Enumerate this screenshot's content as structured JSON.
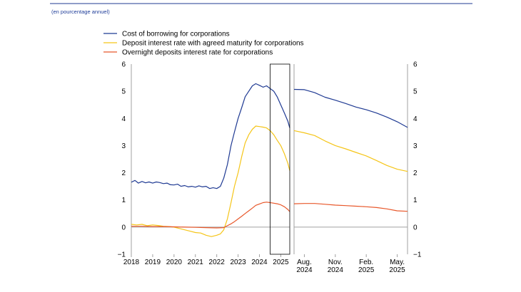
{
  "header": {
    "subtitle": "(en pourcentage annuel)"
  },
  "colors": {
    "borrowing": "#1f3a93",
    "deposit": "#f5c518",
    "overnight": "#e8572a",
    "rule": "#1f3a93",
    "axis": "#a0a0a0",
    "zero": "#a0a0a0",
    "box": "#000000"
  },
  "chart_data": [
    {
      "type": "line",
      "panel": "left",
      "title": "",
      "xlabel": "",
      "ylabel": "",
      "xlim": [
        2018.0,
        2025.42
      ],
      "ylim": [
        -1,
        6
      ],
      "yticks": [
        -1,
        0,
        1,
        2,
        3,
        4,
        5,
        6
      ],
      "xticks": [
        {
          "value": 2018,
          "label": "2018"
        },
        {
          "value": 2019,
          "label": "2019"
        },
        {
          "value": 2020,
          "label": "2020"
        },
        {
          "value": 2021,
          "label": "2021"
        },
        {
          "value": 2022,
          "label": "2022"
        },
        {
          "value": 2023,
          "label": "2023"
        },
        {
          "value": 2024,
          "label": "2024"
        },
        {
          "value": 2025,
          "label": "2025"
        }
      ],
      "highlight_range": [
        2024.5,
        2025.42
      ],
      "series": [
        {
          "name": "Cost of borrowing for corporations",
          "key": "borrowing",
          "x": [
            2018.0,
            2018.17,
            2018.33,
            2018.5,
            2018.67,
            2018.83,
            2019.0,
            2019.17,
            2019.33,
            2019.5,
            2019.67,
            2019.83,
            2020.0,
            2020.17,
            2020.33,
            2020.5,
            2020.67,
            2020.83,
            2021.0,
            2021.17,
            2021.33,
            2021.5,
            2021.67,
            2021.83,
            2022.0,
            2022.17,
            2022.33,
            2022.5,
            2022.67,
            2022.83,
            2023.0,
            2023.17,
            2023.33,
            2023.5,
            2023.67,
            2023.83,
            2024.0,
            2024.17,
            2024.33,
            2024.5,
            2024.67,
            2024.83,
            2025.0,
            2025.17,
            2025.33,
            2025.42
          ],
          "values": [
            1.65,
            1.72,
            1.62,
            1.68,
            1.63,
            1.66,
            1.62,
            1.66,
            1.64,
            1.6,
            1.62,
            1.56,
            1.55,
            1.58,
            1.5,
            1.53,
            1.48,
            1.5,
            1.47,
            1.52,
            1.48,
            1.5,
            1.42,
            1.45,
            1.42,
            1.5,
            1.8,
            2.3,
            3.0,
            3.5,
            4.0,
            4.4,
            4.8,
            5.0,
            5.2,
            5.28,
            5.22,
            5.15,
            5.2,
            5.1,
            5.0,
            4.8,
            4.5,
            4.2,
            3.9,
            3.65
          ]
        },
        {
          "name": "Deposit interest rate with agreed maturity for corporations",
          "key": "deposit",
          "x": [
            2018.0,
            2018.25,
            2018.5,
            2018.75,
            2019.0,
            2019.25,
            2019.5,
            2019.75,
            2020.0,
            2020.25,
            2020.5,
            2020.75,
            2021.0,
            2021.25,
            2021.5,
            2021.75,
            2022.0,
            2022.17,
            2022.33,
            2022.5,
            2022.67,
            2022.83,
            2023.0,
            2023.17,
            2023.33,
            2023.5,
            2023.67,
            2023.83,
            2024.0,
            2024.17,
            2024.33,
            2024.5,
            2024.67,
            2024.83,
            2025.0,
            2025.17,
            2025.33,
            2025.42
          ],
          "values": [
            0.1,
            0.08,
            0.1,
            0.05,
            0.08,
            0.06,
            0.03,
            0.02,
            0.0,
            -0.05,
            -0.1,
            -0.15,
            -0.2,
            -0.22,
            -0.3,
            -0.35,
            -0.3,
            -0.25,
            -0.1,
            0.3,
            0.9,
            1.5,
            2.0,
            2.6,
            3.1,
            3.4,
            3.6,
            3.72,
            3.7,
            3.68,
            3.65,
            3.55,
            3.4,
            3.2,
            3.0,
            2.7,
            2.35,
            2.08
          ]
        },
        {
          "name": "Overnight deposits interest rate for corporations",
          "key": "overnight",
          "x": [
            2018.0,
            2018.5,
            2019.0,
            2019.5,
            2020.0,
            2020.5,
            2021.0,
            2021.5,
            2022.0,
            2022.33,
            2022.5,
            2022.67,
            2022.83,
            2023.0,
            2023.17,
            2023.33,
            2023.5,
            2023.67,
            2023.83,
            2024.0,
            2024.17,
            2024.33,
            2024.5,
            2024.67,
            2024.83,
            2025.0,
            2025.17,
            2025.33,
            2025.42
          ],
          "values": [
            0.03,
            0.03,
            0.02,
            0.02,
            0.01,
            0.0,
            -0.01,
            -0.02,
            -0.03,
            -0.02,
            0.05,
            0.12,
            0.2,
            0.3,
            0.4,
            0.5,
            0.6,
            0.7,
            0.8,
            0.85,
            0.9,
            0.92,
            0.9,
            0.88,
            0.86,
            0.82,
            0.75,
            0.65,
            0.57
          ]
        }
      ]
    },
    {
      "type": "line",
      "panel": "right",
      "title": "",
      "xlabel": "",
      "ylabel": "",
      "xlim": [
        0,
        11
      ],
      "ylim": [
        -1,
        6
      ],
      "yticks": [
        -1,
        0,
        1,
        2,
        3,
        4,
        5,
        6
      ],
      "xticks": [
        {
          "value": 1,
          "label": "Aug.",
          "label2": "2024"
        },
        {
          "value": 4,
          "label": "Nov.",
          "label2": "2024"
        },
        {
          "value": 7,
          "label": "Feb.",
          "label2": "2025"
        },
        {
          "value": 10,
          "label": "May.",
          "label2": "2025"
        }
      ],
      "series": [
        {
          "name": "Cost of borrowing for corporations",
          "key": "borrowing",
          "x": [
            0,
            1,
            2,
            3,
            4,
            5,
            6,
            7,
            8,
            9,
            10,
            11
          ],
          "values": [
            5.07,
            5.06,
            4.95,
            4.78,
            4.67,
            4.55,
            4.42,
            4.32,
            4.2,
            4.05,
            3.88,
            3.67
          ]
        },
        {
          "name": "Deposit interest rate with agreed maturity for corporations",
          "key": "deposit",
          "x": [
            0,
            1,
            2,
            3,
            4,
            5,
            6,
            7,
            8,
            9,
            10,
            11
          ],
          "values": [
            3.55,
            3.47,
            3.37,
            3.17,
            3.0,
            2.88,
            2.75,
            2.62,
            2.45,
            2.27,
            2.13,
            2.05
          ]
        },
        {
          "name": "Overnight deposits interest rate for corporations",
          "key": "overnight",
          "x": [
            0,
            1,
            2,
            3,
            4,
            5,
            6,
            7,
            8,
            9,
            10,
            11
          ],
          "values": [
            0.86,
            0.87,
            0.87,
            0.84,
            0.81,
            0.79,
            0.77,
            0.75,
            0.72,
            0.67,
            0.6,
            0.58
          ]
        }
      ]
    }
  ],
  "legend": {
    "position": "top-left",
    "entries": [
      {
        "label": "Cost of borrowing for corporations",
        "key": "borrowing"
      },
      {
        "label": "Deposit interest rate with agreed maturity for corporations",
        "key": "deposit"
      },
      {
        "label": "Overnight deposits interest rate for corporations",
        "key": "overnight"
      }
    ]
  }
}
